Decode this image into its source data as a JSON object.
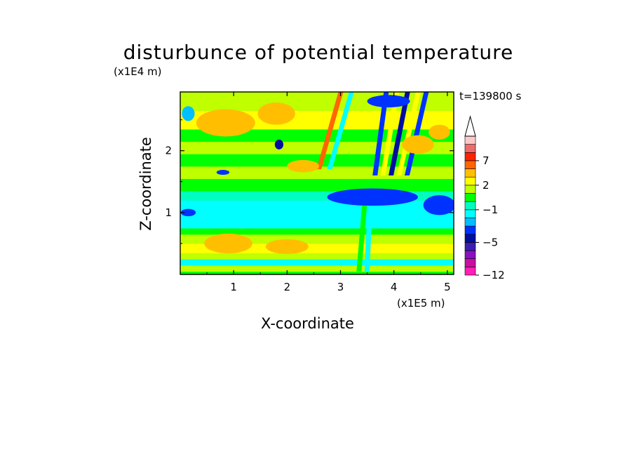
{
  "chart_data": {
    "type": "heatmap",
    "title": "disturbunce of potential temperature",
    "xlabel": "X-coordinate",
    "ylabel": "Z-coordinate",
    "x_multiplier_label": "(x1E5 m)",
    "y_multiplier_label": "(x1E4 m)",
    "time_label": "t=139800 s",
    "xlim": [
      0,
      5.12
    ],
    "ylim": [
      0,
      2.95
    ],
    "x_ticks": [
      1,
      2,
      3,
      4,
      5
    ],
    "y_ticks": [
      1,
      2
    ],
    "x_tick_labels": [
      "1",
      "2",
      "3",
      "4",
      "5"
    ],
    "y_tick_labels": [
      "1",
      "2"
    ],
    "colorbar": {
      "levels": [
        -12,
        -10,
        -8,
        -6,
        -5,
        -4,
        -3,
        -2,
        -1,
        0,
        1,
        2,
        3,
        5,
        7,
        9,
        11
      ],
      "tick_labels": [
        "-12",
        "-5",
        "-1",
        "2",
        "7"
      ],
      "tick_values": [
        -12,
        -5,
        -1,
        2,
        7
      ],
      "colors": [
        "#ff1fb4",
        "#c80fa0",
        "#8b10c0",
        "#3a1fb0",
        "#000ea0",
        "#0032ff",
        "#00bfff",
        "#00ffff",
        "#00ffbf",
        "#00ff00",
        "#bfff00",
        "#ffff00",
        "#ffbf00",
        "#ff6600",
        "#ff2200",
        "#ef6a6a",
        "#ffc8c8"
      ],
      "extend": "max"
    },
    "bands": [
      {
        "zmin": 0.0,
        "zmax": 0.05,
        "value": 0.5
      },
      {
        "zmin": 0.05,
        "zmax": 0.15,
        "value": 1.5
      },
      {
        "zmin": 0.15,
        "zmax": 0.25,
        "value": -1.5
      },
      {
        "zmin": 0.25,
        "zmax": 0.35,
        "value": 1.5
      },
      {
        "zmin": 0.35,
        "zmax": 0.5,
        "value": 2.5
      },
      {
        "zmin": 0.5,
        "zmax": 0.65,
        "value": 1.5
      },
      {
        "zmin": 0.65,
        "zmax": 0.75,
        "value": 0.5
      },
      {
        "zmin": 0.75,
        "zmax": 1.2,
        "value": -1.5
      },
      {
        "zmin": 1.2,
        "zmax": 1.35,
        "value": -0.5
      },
      {
        "zmin": 1.35,
        "zmax": 1.55,
        "value": 0.5
      },
      {
        "zmin": 1.55,
        "zmax": 1.75,
        "value": 1.5
      },
      {
        "zmin": 1.75,
        "zmax": 1.95,
        "value": 0.5
      },
      {
        "zmin": 1.95,
        "zmax": 2.15,
        "value": 1.5
      },
      {
        "zmin": 2.15,
        "zmax": 2.35,
        "value": 0.5
      },
      {
        "zmin": 2.35,
        "zmax": 2.65,
        "value": 2.5
      },
      {
        "zmin": 2.65,
        "zmax": 2.95,
        "value": 1.5
      }
    ],
    "features": [
      {
        "x": 0.85,
        "z": 2.45,
        "rx": 0.55,
        "rz": 0.22,
        "value": 4
      },
      {
        "x": 0.15,
        "z": 2.6,
        "rx": 0.12,
        "rz": 0.12,
        "value": -3
      },
      {
        "x": 1.8,
        "z": 2.6,
        "rx": 0.35,
        "rz": 0.18,
        "value": 4
      },
      {
        "x": 2.3,
        "z": 1.75,
        "rx": 0.3,
        "rz": 0.1,
        "value": 4
      },
      {
        "x": 1.85,
        "z": 2.1,
        "rx": 0.08,
        "rz": 0.08,
        "value": -5
      },
      {
        "x": 0.9,
        "z": 0.5,
        "rx": 0.45,
        "rz": 0.16,
        "value": 4
      },
      {
        "x": 2.0,
        "z": 0.45,
        "rx": 0.4,
        "rz": 0.12,
        "value": 3
      },
      {
        "x": 3.6,
        "z": 1.25,
        "rx": 0.85,
        "rz": 0.14,
        "value": -4
      },
      {
        "x": 4.85,
        "z": 1.12,
        "rx": 0.3,
        "rz": 0.16,
        "value": -4
      },
      {
        "x": 4.45,
        "z": 2.1,
        "rx": 0.3,
        "rz": 0.15,
        "value": 3
      },
      {
        "x": 4.85,
        "z": 2.3,
        "rx": 0.2,
        "rz": 0.12,
        "value": 4
      },
      {
        "x": 3.9,
        "z": 2.8,
        "rx": 0.4,
        "rz": 0.1,
        "value": -4
      },
      {
        "x": 0.8,
        "z": 1.65,
        "rx": 0.12,
        "rz": 0.04,
        "value": -4
      },
      {
        "x": 0.15,
        "z": 1.0,
        "rx": 0.14,
        "rz": 0.06,
        "value": -4
      }
    ],
    "waves": [
      {
        "x0": 2.55,
        "x1": 3.0,
        "zmin": 1.7,
        "zmax": 2.95,
        "value": 5
      },
      {
        "x0": 2.75,
        "x1": 3.2,
        "zmin": 1.7,
        "zmax": 2.95,
        "value": -1.5
      },
      {
        "x0": 3.6,
        "x1": 3.85,
        "zmin": 1.6,
        "zmax": 2.95,
        "value": -4
      },
      {
        "x0": 3.75,
        "x1": 4.05,
        "zmin": 1.6,
        "zmax": 2.95,
        "value": 2.5
      },
      {
        "x0": 3.9,
        "x1": 4.25,
        "zmin": 1.6,
        "zmax": 2.95,
        "value": -5
      },
      {
        "x0": 4.05,
        "x1": 4.45,
        "zmin": 1.6,
        "zmax": 2.95,
        "value": 2.5
      },
      {
        "x0": 4.2,
        "x1": 4.6,
        "zmin": 1.6,
        "zmax": 2.95,
        "value": -4
      },
      {
        "x0": 3.3,
        "x1": 3.45,
        "zmin": 0.05,
        "zmax": 1.2,
        "value": 0.5
      },
      {
        "x0": 3.45,
        "x1": 3.55,
        "zmin": 0.05,
        "zmax": 1.2,
        "value": -1.5
      }
    ]
  }
}
